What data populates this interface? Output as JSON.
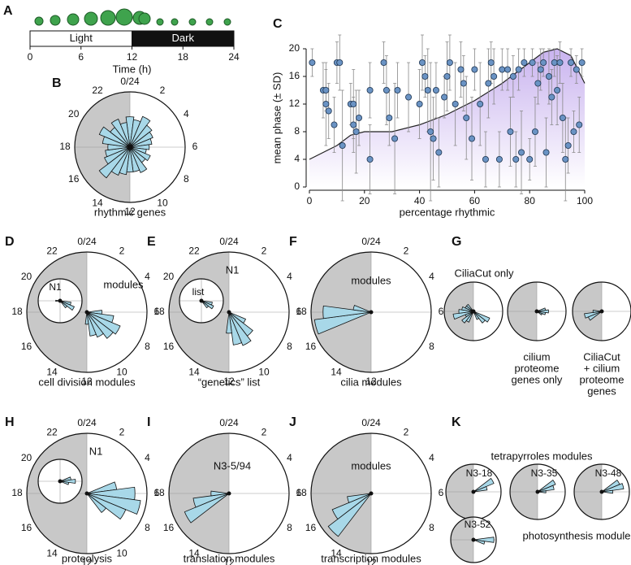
{
  "chart_data": [
    {
      "type": "timeline",
      "panel": "A",
      "xlim": [
        0,
        24
      ],
      "xticks": [
        0,
        6,
        12,
        18,
        24
      ],
      "xlabel": "Time (h)",
      "segments": [
        {
          "name": "Light",
          "start": 0,
          "end": 12,
          "color": "#ffffff"
        },
        {
          "name": "Dark",
          "start": 12,
          "end": 24,
          "color": "#111111"
        }
      ]
    },
    {
      "type": "rose",
      "panel": "B",
      "caption_lines": [
        "rhythmic genes"
      ],
      "shade_dark": true,
      "hour_ticks": [
        {
          "value": 0,
          "label": "0/24"
        },
        2,
        4,
        6,
        8,
        10,
        12,
        14,
        16,
        18,
        20,
        22
      ],
      "x": [
        0,
        1,
        2,
        3,
        4,
        5,
        6,
        7,
        8,
        9,
        10,
        11,
        12,
        13,
        14,
        15,
        16,
        17,
        18,
        19,
        20,
        21,
        22,
        23
      ],
      "values": [
        0.55,
        0.5,
        0.6,
        0.5,
        0.45,
        0.4,
        0.35,
        0.3,
        0.4,
        0.35,
        0.5,
        0.45,
        0.45,
        0.5,
        0.55,
        0.7,
        0.5,
        0.45,
        0.4,
        0.5,
        0.6,
        0.45,
        0.55,
        0.45
      ],
      "color": "#a8d8e8"
    },
    {
      "type": "scatter",
      "panel": "C",
      "xlabel": "percentage rhythmic",
      "ylabel": "mean phase (± SD)",
      "xlim": [
        0,
        100
      ],
      "ylim": [
        0,
        20
      ],
      "xticks": [
        0,
        20,
        40,
        60,
        80,
        100
      ],
      "yticks": [
        0,
        4,
        8,
        12,
        16,
        20
      ],
      "color": "#6a93c4",
      "x": [
        1,
        5,
        6,
        6,
        7,
        9,
        10,
        11,
        12,
        15,
        16,
        16,
        17,
        18,
        22,
        22,
        27,
        28,
        29,
        31,
        32,
        36,
        40,
        41,
        42,
        43,
        44,
        45,
        46,
        47,
        49,
        50,
        51,
        53,
        55,
        56,
        57,
        59,
        60,
        62,
        64,
        65,
        66,
        67,
        69,
        70,
        72,
        73,
        74,
        75,
        76,
        77,
        78,
        80,
        81,
        82,
        83,
        84,
        85,
        86,
        87,
        88,
        89,
        90,
        91,
        92,
        93,
        94,
        95,
        96,
        97,
        98,
        99
      ],
      "values": [
        18,
        14,
        12,
        14,
        11,
        9,
        18,
        18,
        6,
        12,
        12,
        9,
        8,
        10,
        4,
        14,
        18,
        14,
        10,
        7,
        14,
        13,
        12,
        18,
        16,
        14,
        8,
        7,
        14,
        5,
        13,
        16,
        18,
        12,
        17,
        15,
        10,
        7,
        17,
        12,
        4,
        15,
        18,
        16,
        4,
        17,
        17,
        8,
        16,
        4,
        17,
        5,
        18,
        4,
        18,
        8,
        15,
        17,
        18,
        5,
        16,
        13,
        18,
        14,
        18,
        10,
        4,
        6,
        18,
        8,
        17,
        9,
        18
      ],
      "errors": [
        2,
        4,
        6,
        3,
        4,
        4,
        3,
        4,
        8,
        3,
        5,
        4,
        6,
        4,
        5,
        4,
        3,
        5,
        4,
        8,
        4,
        5,
        5,
        4,
        3,
        6,
        10,
        6,
        4,
        5,
        3,
        5,
        4,
        6,
        4,
        4,
        6,
        6,
        3,
        6,
        4,
        5,
        3,
        4,
        4,
        3,
        3,
        5,
        3,
        4,
        3,
        6,
        2,
        3,
        2,
        5,
        3,
        3,
        2,
        5,
        4,
        4,
        2,
        5,
        3,
        5,
        6,
        4,
        2,
        3,
        2,
        4,
        2
      ],
      "density": {
        "color": "#b79be0",
        "x": [
          0,
          5,
          10,
          15,
          20,
          25,
          30,
          40,
          50,
          60,
          70,
          80,
          85,
          90,
          95,
          100
        ],
        "values": [
          4,
          5,
          6,
          7.5,
          8,
          8,
          8,
          9,
          10.5,
          12.5,
          15,
          18,
          19.5,
          20,
          19,
          15
        ]
      }
    },
    {
      "type": "rose",
      "panel": "D",
      "caption_lines": [
        "cell division modules"
      ],
      "annotation": "modules",
      "shade_dark": true,
      "hour_ticks": [
        {
          "value": 0,
          "label": "0/24"
        },
        2,
        4,
        6,
        8,
        10,
        12,
        14,
        16,
        18,
        20,
        22
      ],
      "x": [
        6,
        7,
        8,
        9,
        10,
        11,
        12
      ],
      "values": [
        0.25,
        0.45,
        0.6,
        0.55,
        0.45,
        0.4,
        0.2
      ],
      "color": "#a8d8e8"
    },
    {
      "type": "rose",
      "label": "N1",
      "shade_dark": false,
      "x": [
        7,
        8,
        9,
        18
      ],
      "values": [
        0.5,
        0.7,
        0.4,
        0.2
      ],
      "color": "#a8d8e8"
    },
    {
      "type": "rose",
      "panel": "E",
      "caption_lines": [
        "“genetics” list"
      ],
      "shade_dark": true,
      "hour_ticks": [
        {
          "value": 0,
          "label": "0/24"
        },
        2,
        4,
        6,
        8,
        10,
        12,
        14,
        16,
        18,
        20,
        22
      ],
      "x": [
        8,
        9,
        10,
        11,
        12
      ],
      "values": [
        0.3,
        0.5,
        0.6,
        0.55,
        0.35
      ],
      "color": "#a8d8e8"
    },
    {
      "type": "rose",
      "label": "list",
      "annotation": "N1",
      "shade_dark": false,
      "x": [
        7,
        8,
        9
      ],
      "values": [
        0.5,
        0.6,
        0.4
      ],
      "color": "#a8d8e8"
    },
    {
      "type": "rose",
      "panel": "F",
      "caption_lines": [
        "cilia modules"
      ],
      "annotation": "modules",
      "shade_dark": true,
      "hour_ticks": [
        {
          "value": 0,
          "label": "0/24"
        },
        2,
        4,
        6,
        8,
        12,
        14,
        16,
        18
      ],
      "x": [
        17,
        18,
        19
      ],
      "values": [
        0.95,
        0.8,
        0.3
      ],
      "color": "#a8d8e8"
    },
    {
      "type": "rose",
      "panel": "G",
      "annotation": "CiliaCut only",
      "shade_dark": true,
      "x": [
        8,
        9,
        10,
        14,
        15,
        16,
        17,
        18,
        19,
        20,
        21
      ],
      "values": [
        0.6,
        0.5,
        0.3,
        0.4,
        0.5,
        0.3,
        0.7,
        0.5,
        0.4,
        0.3,
        0.3
      ],
      "color": "#a8d8e8"
    },
    {
      "type": "rose",
      "caption_lines": [
        "cilium",
        "proteome",
        "genes only"
      ],
      "shade_dark": true,
      "x": [
        5,
        6,
        7,
        8
      ],
      "values": [
        0.3,
        0.4,
        0.3,
        0.2
      ],
      "color": "#a8d8e8"
    },
    {
      "type": "rose",
      "caption_lines": [
        "CiliaCut",
        "+ cilium",
        "proteome",
        "genes"
      ],
      "shade_dark": true,
      "x": [
        16,
        17,
        18
      ],
      "values": [
        0.5,
        0.6,
        0.3
      ],
      "color": "#a8d8e8"
    },
    {
      "type": "rose",
      "panel": "H",
      "caption_lines": [
        "proteolysis"
      ],
      "shade_dark": true,
      "hour_ticks": [
        {
          "value": 0,
          "label": "0/24"
        },
        2,
        4,
        6,
        8,
        10,
        12,
        14,
        16,
        18,
        20,
        22
      ],
      "x": [
        5,
        6,
        7,
        8,
        9
      ],
      "values": [
        0.5,
        0.8,
        0.9,
        0.7,
        0.4
      ],
      "color": "#a8d8e8"
    },
    {
      "type": "rose",
      "annotation": "N1",
      "shade_dark": false,
      "x": [
        5,
        6,
        7
      ],
      "values": [
        0.5,
        0.7,
        0.4
      ],
      "color": "#a8d8e8"
    },
    {
      "type": "rose",
      "panel": "I",
      "caption_lines": [
        "translation modules"
      ],
      "annotation": "N3-5/94",
      "shade_dark": true,
      "hour_ticks": [
        {
          "value": 0,
          "label": "0/24"
        },
        2,
        4,
        6,
        8,
        12,
        14,
        16,
        18
      ],
      "x": [
        16,
        17,
        18
      ],
      "values": [
        0.8,
        0.6,
        0.3
      ],
      "color": "#a8d8e8"
    },
    {
      "type": "rose",
      "panel": "J",
      "caption_lines": [
        "transcription modules"
      ],
      "annotation": "modules",
      "shade_dark": true,
      "hour_ticks": [
        {
          "value": 0,
          "label": "0/24"
        },
        2,
        4,
        6,
        8,
        12,
        14,
        16,
        18
      ],
      "x": [
        15,
        16,
        17
      ],
      "values": [
        0.9,
        0.7,
        0.4
      ],
      "color": "#a8d8e8"
    },
    {
      "type": "rose",
      "panel": "K",
      "annotation": "tetrapyrroles modules",
      "label": "N3-18",
      "shade_dark": true,
      "x": [
        4,
        5
      ],
      "values": [
        0.8,
        0.5
      ],
      "color": "#a8d8e8"
    },
    {
      "type": "rose",
      "label": "N3-35",
      "shade_dark": true,
      "x": [
        4,
        5,
        6
      ],
      "values": [
        0.7,
        0.6,
        0.3
      ],
      "color": "#a8d8e8"
    },
    {
      "type": "rose",
      "label": "N3-48",
      "shade_dark": true,
      "x": [
        4,
        5,
        6
      ],
      "values": [
        0.7,
        0.8,
        0.4
      ],
      "color": "#a8d8e8"
    },
    {
      "type": "rose",
      "label": "N3-52",
      "annotation": "photosynthesis module",
      "shade_dark": true,
      "x": [
        6,
        7
      ],
      "values": [
        0.9,
        0.5
      ],
      "color": "#a8d8e8"
    }
  ]
}
